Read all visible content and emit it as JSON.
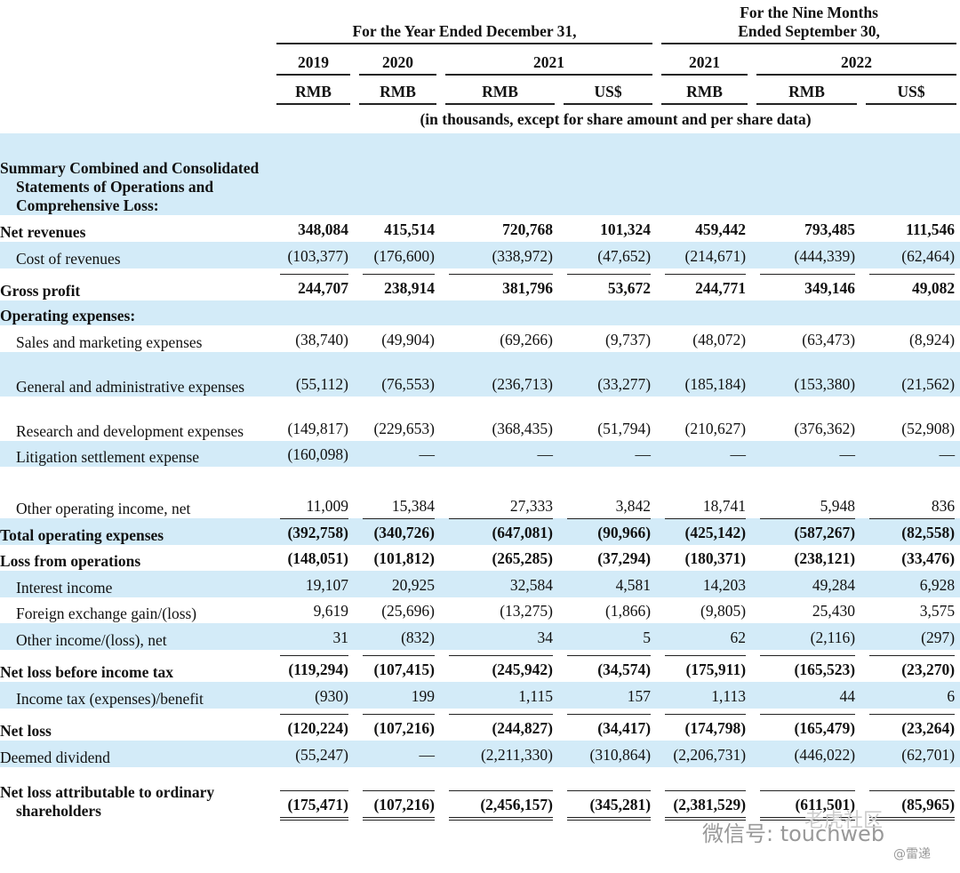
{
  "header": {
    "group_year": "For the Year Ended December 31,",
    "group_nine_months": [
      "For the Nine Months",
      "Ended September 30,"
    ],
    "years": [
      "2019",
      "2020",
      "2021",
      "2021",
      "2022"
    ],
    "currencies": [
      "RMB",
      "RMB",
      "RMB",
      "US$",
      "RMB",
      "RMB",
      "US$"
    ],
    "note": "(in thousands, except for share amount and per share data)"
  },
  "table": {
    "rows": [
      {
        "label": "Summary Combined and Consolidated Statements of Operations and Comprehensive Loss:",
        "values": []
      },
      {
        "label": "Net revenues",
        "values": [
          "348,084",
          "415,514",
          "720,768",
          "101,324",
          "459,442",
          "793,485",
          "111,546"
        ]
      },
      {
        "label": "Cost of revenues",
        "values": [
          "(103,377)",
          "(176,600)",
          "(338,972)",
          "(47,652)",
          "(214,671)",
          "(444,339)",
          "(62,464)"
        ]
      },
      {
        "label": "Gross profit",
        "values": [
          "244,707",
          "238,914",
          "381,796",
          "53,672",
          "244,771",
          "349,146",
          "49,082"
        ]
      },
      {
        "label": "Operating expenses:",
        "values": []
      },
      {
        "label": "Sales and marketing expenses",
        "values": [
          "(38,740)",
          "(49,904)",
          "(69,266)",
          "(9,737)",
          "(48,072)",
          "(63,473)",
          "(8,924)"
        ]
      },
      {
        "label": "General and administrative expenses",
        "values": [
          "(55,112)",
          "(76,553)",
          "(236,713)",
          "(33,277)",
          "(185,184)",
          "(153,380)",
          "(21,562)"
        ]
      },
      {
        "label": "Research and development expenses",
        "values": [
          "(149,817)",
          "(229,653)",
          "(368,435)",
          "(51,794)",
          "(210,627)",
          "(376,362)",
          "(52,908)"
        ]
      },
      {
        "label": "Litigation settlement expense",
        "values": [
          "(160,098)",
          "—",
          "—",
          "—",
          "—",
          "—",
          "—"
        ]
      },
      {
        "label": "Other operating income, net",
        "values": [
          "11,009",
          "15,384",
          "27,333",
          "3,842",
          "18,741",
          "5,948",
          "836"
        ]
      },
      {
        "label": "Total operating expenses",
        "values": [
          "(392,758)",
          "(340,726)",
          "(647,081)",
          "(90,966)",
          "(425,142)",
          "(587,267)",
          "(82,558)"
        ]
      },
      {
        "label": "Loss from operations",
        "values": [
          "(148,051)",
          "(101,812)",
          "(265,285)",
          "(37,294)",
          "(180,371)",
          "(238,121)",
          "(33,476)"
        ]
      },
      {
        "label": "Interest income",
        "values": [
          "19,107",
          "20,925",
          "32,584",
          "4,581",
          "14,203",
          "49,284",
          "6,928"
        ]
      },
      {
        "label": "Foreign exchange gain/(loss)",
        "values": [
          "9,619",
          "(25,696)",
          "(13,275)",
          "(1,866)",
          "(9,805)",
          "25,430",
          "3,575"
        ]
      },
      {
        "label": "Other income/(loss), net",
        "values": [
          "31",
          "(832)",
          "34",
          "5",
          "62",
          "(2,116)",
          "(297)"
        ]
      },
      {
        "label": "Net loss before income tax",
        "values": [
          "(119,294)",
          "(107,415)",
          "(245,942)",
          "(34,574)",
          "(175,911)",
          "(165,523)",
          "(23,270)"
        ]
      },
      {
        "label": "Income tax (expenses)/benefit",
        "values": [
          "(930)",
          "199",
          "1,115",
          "157",
          "1,113",
          "44",
          "6"
        ]
      },
      {
        "label": "Net loss",
        "values": [
          "(120,224)",
          "(107,216)",
          "(244,827)",
          "(34,417)",
          "(174,798)",
          "(165,479)",
          "(23,264)"
        ]
      },
      {
        "label": "Deemed dividend",
        "values": [
          "(55,247)",
          "—",
          "(2,211,330)",
          "(310,864)",
          "(2,206,731)",
          "(446,022)",
          "(62,701)"
        ]
      },
      {
        "label": "Net loss attributable to ordinary shareholders",
        "values": [
          "(175,471)",
          "(107,216)",
          "(2,456,157)",
          "(345,281)",
          "(2,381,529)",
          "(611,501)",
          "(85,965)"
        ]
      }
    ]
  },
  "watermark": {
    "account": "微信号: touchweb",
    "source": "@雷递",
    "community": "老虎社区"
  }
}
